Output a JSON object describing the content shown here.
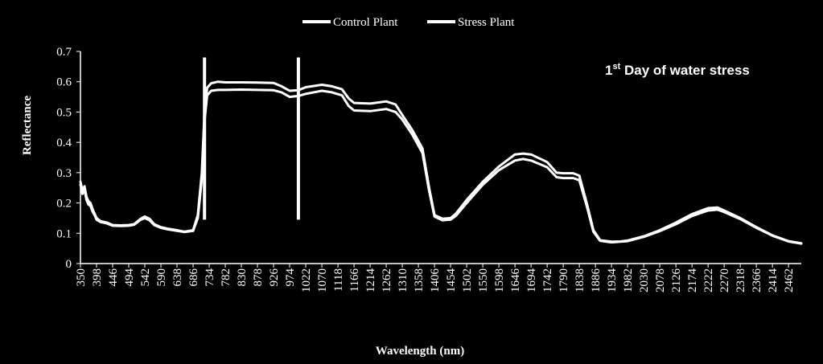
{
  "chart_data": {
    "type": "line",
    "xlabel": "Wavelength (nm)",
    "ylabel": "Reflectance",
    "ylim": [
      0,
      0.7
    ],
    "yticks": [
      "0",
      "0.1",
      "0.2",
      "0.3",
      "0.4",
      "0.5",
      "0.6",
      "0.7"
    ],
    "xticks": [
      "350",
      "398",
      "446",
      "494",
      "542",
      "590",
      "638",
      "686",
      "734",
      "782",
      "830",
      "878",
      "926",
      "974",
      "1022",
      "1070",
      "1118",
      "1166",
      "1214",
      "1262",
      "1310",
      "1358",
      "1406",
      "1454",
      "1502",
      "1550",
      "1598",
      "1646",
      "1694",
      "1742",
      "1790",
      "1838",
      "1886",
      "1934",
      "1982",
      "2030",
      "2078",
      "2126",
      "2174",
      "2222",
      "2270",
      "2318",
      "2366",
      "2414",
      "2462"
    ],
    "xrange": [
      350,
      2500
    ],
    "grid": false,
    "legend_position": "top-center",
    "annotation": {
      "main": "1",
      "sup": "st",
      "rest": " Day of water stress"
    },
    "vertical_markers": [
      {
        "x": 720,
        "y_range": [
          0.145,
          0.68
        ]
      },
      {
        "x": 1000,
        "y_range": [
          0.145,
          0.68
        ]
      }
    ],
    "series": [
      {
        "name": "Control Plant",
        "color": "#ffffff",
        "x": [
          350,
          356,
          362,
          368,
          374,
          380,
          386,
          392,
          398,
          410,
          430,
          446,
          470,
          494,
          510,
          530,
          542,
          556,
          570,
          590,
          610,
          638,
          660,
          686,
          700,
          712,
          720,
          728,
          740,
          760,
          782,
          830,
          878,
          926,
          950,
          974,
          1000,
          1022,
          1070,
          1100,
          1130,
          1150,
          1166,
          1214,
          1262,
          1290,
          1310,
          1340,
          1370,
          1390,
          1406,
          1430,
          1454,
          1470,
          1502,
          1550,
          1598,
          1646,
          1670,
          1694,
          1742,
          1770,
          1790,
          1820,
          1838,
          1860,
          1880,
          1900,
          1934,
          1960,
          1982,
          2030,
          2078,
          2126,
          2174,
          2222,
          2250,
          2270,
          2318,
          2366,
          2414,
          2462,
          2500
        ],
        "values": [
          0.27,
          0.24,
          0.255,
          0.22,
          0.205,
          0.2,
          0.18,
          0.165,
          0.15,
          0.14,
          0.135,
          0.127,
          0.126,
          0.127,
          0.13,
          0.148,
          0.155,
          0.148,
          0.13,
          0.12,
          0.115,
          0.11,
          0.105,
          0.11,
          0.16,
          0.3,
          0.5,
          0.58,
          0.595,
          0.6,
          0.598,
          0.598,
          0.597,
          0.596,
          0.585,
          0.57,
          0.572,
          0.582,
          0.59,
          0.585,
          0.575,
          0.545,
          0.53,
          0.528,
          0.535,
          0.525,
          0.49,
          0.44,
          0.38,
          0.25,
          0.16,
          0.148,
          0.15,
          0.165,
          0.21,
          0.27,
          0.32,
          0.36,
          0.363,
          0.36,
          0.335,
          0.3,
          0.298,
          0.298,
          0.29,
          0.2,
          0.11,
          0.077,
          0.072,
          0.073,
          0.076,
          0.09,
          0.11,
          0.135,
          0.163,
          0.183,
          0.185,
          0.175,
          0.15,
          0.12,
          0.093,
          0.074,
          0.067
        ]
      },
      {
        "name": "Stress Plant",
        "color": "#ffffff",
        "x": [
          350,
          356,
          362,
          368,
          374,
          380,
          386,
          392,
          398,
          410,
          430,
          446,
          470,
          494,
          510,
          530,
          542,
          556,
          570,
          590,
          610,
          638,
          660,
          686,
          700,
          712,
          720,
          728,
          740,
          760,
          782,
          830,
          878,
          926,
          950,
          974,
          1000,
          1022,
          1070,
          1100,
          1130,
          1150,
          1166,
          1214,
          1262,
          1290,
          1310,
          1340,
          1370,
          1390,
          1406,
          1430,
          1454,
          1470,
          1502,
          1550,
          1598,
          1646,
          1670,
          1694,
          1742,
          1770,
          1790,
          1820,
          1838,
          1860,
          1880,
          1900,
          1934,
          1960,
          1982,
          2030,
          2078,
          2126,
          2174,
          2222,
          2250,
          2270,
          2318,
          2366,
          2414,
          2462,
          2500
        ],
        "values": [
          0.26,
          0.23,
          0.245,
          0.21,
          0.195,
          0.19,
          0.172,
          0.16,
          0.145,
          0.137,
          0.132,
          0.125,
          0.124,
          0.125,
          0.128,
          0.145,
          0.15,
          0.143,
          0.127,
          0.118,
          0.113,
          0.108,
          0.104,
          0.108,
          0.15,
          0.28,
          0.47,
          0.555,
          0.57,
          0.573,
          0.573,
          0.574,
          0.573,
          0.572,
          0.565,
          0.55,
          0.553,
          0.56,
          0.57,
          0.565,
          0.555,
          0.52,
          0.505,
          0.503,
          0.51,
          0.5,
          0.475,
          0.425,
          0.365,
          0.24,
          0.155,
          0.143,
          0.145,
          0.158,
          0.2,
          0.26,
          0.308,
          0.34,
          0.345,
          0.34,
          0.318,
          0.285,
          0.282,
          0.282,
          0.275,
          0.19,
          0.105,
          0.075,
          0.07,
          0.072,
          0.074,
          0.088,
          0.107,
          0.13,
          0.157,
          0.175,
          0.178,
          0.17,
          0.147,
          0.118,
          0.092,
          0.073,
          0.066
        ]
      }
    ]
  }
}
